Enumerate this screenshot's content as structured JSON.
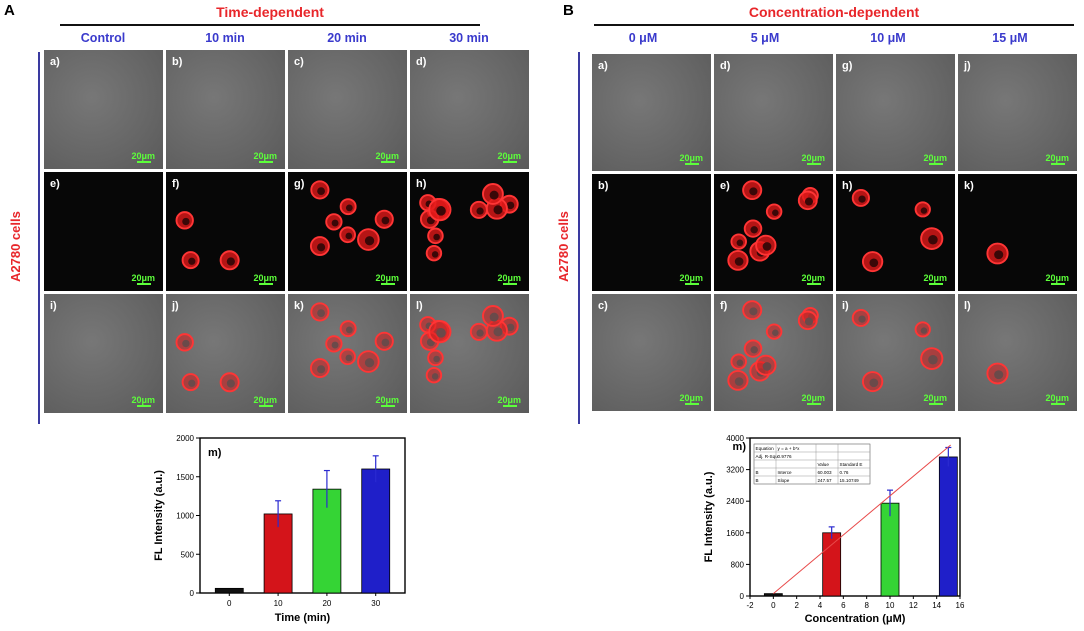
{
  "panelA": {
    "letter": "A",
    "title": "Time-dependent",
    "columns": [
      "Control",
      "10 min",
      "20 min",
      "30 min"
    ],
    "row_label": "A2780 cells",
    "tiles": [
      {
        "label": "a)",
        "scale": "20μm",
        "kind": "bright",
        "cells": 0
      },
      {
        "label": "b)",
        "scale": "20μm",
        "kind": "bright",
        "cells": 0
      },
      {
        "label": "c)",
        "scale": "20μm",
        "kind": "bright",
        "cells": 0
      },
      {
        "label": "d)",
        "scale": "20μm",
        "kind": "bright",
        "cells": 0
      },
      {
        "label": "e)",
        "scale": "20μm",
        "kind": "dark",
        "cells": 0
      },
      {
        "label": "f)",
        "scale": "20μm",
        "kind": "dark",
        "cells": 3
      },
      {
        "label": "g)",
        "scale": "20μm",
        "kind": "dark",
        "cells": 7
      },
      {
        "label": "h)",
        "scale": "20μm",
        "kind": "dark",
        "cells": 10
      },
      {
        "label": "i)",
        "scale": "20μm",
        "kind": "bright",
        "cells": 0
      },
      {
        "label": "j)",
        "scale": "20μm",
        "kind": "merge",
        "cells": 3
      },
      {
        "label": "k)",
        "scale": "20μm",
        "kind": "merge",
        "cells": 7
      },
      {
        "label": "l)",
        "scale": "20μm",
        "kind": "merge",
        "cells": 10
      }
    ]
  },
  "panelB": {
    "letter": "B",
    "title": "Concentration-dependent",
    "columns": [
      "0 μM",
      "5 μM",
      "10 μM",
      "15 μM"
    ],
    "row_label": "A2780 cells",
    "tiles": [
      {
        "label": "a)",
        "scale": "20μm",
        "kind": "bright",
        "cells": 0
      },
      {
        "label": "d)",
        "scale": "20μm",
        "kind": "bright",
        "cells": 0
      },
      {
        "label": "g)",
        "scale": "20μm",
        "kind": "bright",
        "cells": 0
      },
      {
        "label": "j)",
        "scale": "20μm",
        "kind": "bright",
        "cells": 0
      },
      {
        "label": "b)",
        "scale": "20μm",
        "kind": "dark",
        "cells": 0
      },
      {
        "label": "e)",
        "scale": "20μm",
        "kind": "dark",
        "cells": 9
      },
      {
        "label": "h)",
        "scale": "20μm",
        "kind": "dark",
        "cells": 4
      },
      {
        "label": "k)",
        "scale": "20μm",
        "kind": "dark",
        "cells": 1
      },
      {
        "label": "c)",
        "scale": "20μm",
        "kind": "bright",
        "cells": 0
      },
      {
        "label": "f)",
        "scale": "20μm",
        "kind": "merge",
        "cells": 9
      },
      {
        "label": "i)",
        "scale": "20μm",
        "kind": "merge",
        "cells": 4
      },
      {
        "label": "l)",
        "scale": "20μm",
        "kind": "merge",
        "cells": 1
      }
    ]
  },
  "chart_data": [
    {
      "type": "bar",
      "panel_label": "m)",
      "categories": [
        "0",
        "10",
        "20",
        "30"
      ],
      "values": [
        60,
        1020,
        1340,
        1600
      ],
      "errors": [
        0,
        170,
        240,
        170
      ],
      "colors": [
        "#111111",
        "#d4141a",
        "#35d435",
        "#1f1fc9"
      ],
      "xlabel": "Time (min)",
      "ylabel": "FL Intensity (a.u.)",
      "ylim": [
        0,
        2000
      ],
      "yticks": [
        0,
        500,
        1000,
        1500,
        2000
      ],
      "grid": false
    },
    {
      "type": "bar",
      "panel_label": "m)",
      "x": [
        0,
        5,
        10,
        15
      ],
      "values": [
        60,
        1600,
        2350,
        3520
      ],
      "errors": [
        0,
        150,
        330,
        240
      ],
      "colors": [
        "#111111",
        "#d4141a",
        "#35d435",
        "#1f1fc9"
      ],
      "xlabel": "Concentration (μM)",
      "ylabel": "FL Intensity (a.u.)",
      "xlim": [
        -2,
        16
      ],
      "xticks": [
        -2,
        0,
        2,
        4,
        6,
        8,
        10,
        12,
        14,
        16
      ],
      "ylim": [
        0,
        4000
      ],
      "yticks": [
        0,
        800,
        1600,
        2400,
        3200,
        4000
      ],
      "fit_line": {
        "intercept": 60.003,
        "slope": 247.57
      },
      "inset_table": {
        "rows": [
          [
            "Equation",
            "y = a + b*x",
            "",
            ""
          ],
          [
            "Adj. R-Squ",
            "0.9776",
            "",
            ""
          ],
          [
            "",
            "",
            "Value",
            "Standard E"
          ],
          [
            "B",
            "Interce",
            "60.003",
            "0.76"
          ],
          [
            "B",
            "Slope",
            "247.57",
            "15.10749"
          ]
        ]
      },
      "grid": false
    }
  ]
}
